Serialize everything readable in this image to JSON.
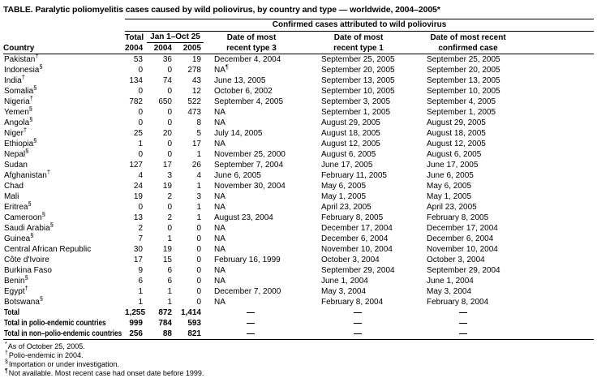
{
  "title": "TABLE. Paralytic poliomyelitis cases caused by wild poliovirus, by country and type — worldwide, 2004–2005*",
  "headers": {
    "group": "Confirmed cases attributed to wild poliovirus",
    "country": "Country",
    "total_line1": "Total",
    "total_line2": "2004",
    "jan_oct": "Jan 1–Oct 25",
    "jan_oct_2004": "2004",
    "jan_oct_2005": "2005",
    "type3_line1": "Date of most",
    "type3_line2": "recent type 3",
    "type1_line1": "Date of most",
    "type1_line2": "recent type 1",
    "recent_line1": "Date of most recent",
    "recent_line2": "confirmed case"
  },
  "rows": [
    {
      "country": "Pakistan",
      "marker": "†",
      "total_2004": "53",
      "jan_oct_2004": "36",
      "jan_oct_2005": "19",
      "type3": "December 4, 2004",
      "type1": "September 25, 2005",
      "recent": "September 25, 2005"
    },
    {
      "country": "Indonesia",
      "marker": "§",
      "total_2004": "0",
      "jan_oct_2004": "0",
      "jan_oct_2005": "278",
      "type3": "NA",
      "type3_marker": "¶",
      "type1": "September 20, 2005",
      "recent": "September 20, 2005"
    },
    {
      "country": "India",
      "marker": "†",
      "total_2004": "134",
      "jan_oct_2004": "74",
      "jan_oct_2005": "43",
      "type3": "June 13, 2005",
      "type1": "September 13, 2005",
      "recent": "September 13, 2005"
    },
    {
      "country": "Somalia",
      "marker": "§",
      "total_2004": "0",
      "jan_oct_2004": "0",
      "jan_oct_2005": "12",
      "type3": "October 6, 2002",
      "type1": "September 10, 2005",
      "recent": "September 10, 2005"
    },
    {
      "country": "Nigeria",
      "marker": "†",
      "total_2004": "782",
      "jan_oct_2004": "650",
      "jan_oct_2005": "522",
      "type3": "September 4, 2005",
      "type1": "September 3, 2005",
      "recent": "September 4, 2005"
    },
    {
      "country": "Yemen",
      "marker": "§",
      "total_2004": "0",
      "jan_oct_2004": "0",
      "jan_oct_2005": "473",
      "type3": "NA",
      "type1": "September 1, 2005",
      "recent": "September 1, 2005"
    },
    {
      "country": "Angola",
      "marker": "§",
      "total_2004": "0",
      "jan_oct_2004": "0",
      "jan_oct_2005": "8",
      "type3": "NA",
      "type1": "August 29, 2005",
      "recent": "August 29, 2005"
    },
    {
      "country": "Niger",
      "marker": "†",
      "total_2004": "25",
      "jan_oct_2004": "20",
      "jan_oct_2005": "5",
      "type3": "July 14, 2005",
      "type1": "August 18, 2005",
      "recent": "August 18, 2005"
    },
    {
      "country": "Ethiopia",
      "marker": "§",
      "total_2004": "1",
      "jan_oct_2004": "0",
      "jan_oct_2005": "17",
      "type3": "NA",
      "type1": "August 12, 2005",
      "recent": "August 12, 2005"
    },
    {
      "country": "Nepal",
      "marker": "§",
      "total_2004": "0",
      "jan_oct_2004": "0",
      "jan_oct_2005": "1",
      "type3": "November 25, 2000",
      "type1": "August 6, 2005",
      "recent": "August 6, 2005"
    },
    {
      "country": "Sudan",
      "total_2004": "127",
      "jan_oct_2004": "17",
      "jan_oct_2005": "26",
      "type3": "September 7, 2004",
      "type1": "June 17, 2005",
      "recent": "June 17, 2005"
    },
    {
      "country": "Afghanistan",
      "marker": "†",
      "total_2004": "4",
      "jan_oct_2004": "3",
      "jan_oct_2005": "4",
      "type3": "June 6, 2005",
      "type1": "February 11, 2005",
      "recent": "June 6, 2005"
    },
    {
      "country": "Chad",
      "total_2004": "24",
      "jan_oct_2004": "19",
      "jan_oct_2005": "1",
      "type3": "November 30, 2004",
      "type1": "May 6, 2005",
      "recent": "May 6, 2005"
    },
    {
      "country": "Mali",
      "total_2004": "19",
      "jan_oct_2004": "2",
      "jan_oct_2005": "3",
      "type3": "NA",
      "type1": "May 1, 2005",
      "recent": "May 1, 2005"
    },
    {
      "country": "Eritrea",
      "marker": "§",
      "total_2004": "0",
      "jan_oct_2004": "0",
      "jan_oct_2005": "1",
      "type3": "NA",
      "type1": "April 23, 2005",
      "recent": "April 23, 2005"
    },
    {
      "country": "Cameroon",
      "marker": "§",
      "total_2004": "13",
      "jan_oct_2004": "2",
      "jan_oct_2005": "1",
      "type3": "August 23, 2004",
      "type1": "February 8, 2005",
      "recent": "February 8, 2005"
    },
    {
      "country": "Saudi Arabia",
      "marker": "§",
      "total_2004": "2",
      "jan_oct_2004": "0",
      "jan_oct_2005": "0",
      "type3": "NA",
      "type1": "December 17, 2004",
      "recent": "December 17, 2004"
    },
    {
      "country": "Guinea",
      "marker": "§",
      "total_2004": "7",
      "jan_oct_2004": "1",
      "jan_oct_2005": "0",
      "type3": "NA",
      "type1": "December 6, 2004",
      "recent": "December 6, 2004"
    },
    {
      "country": "Central African Republic",
      "total_2004": "30",
      "jan_oct_2004": "19",
      "jan_oct_2005": "0",
      "type3": "NA",
      "type1": "November 10, 2004",
      "recent": "November 10, 2004"
    },
    {
      "country": "Côte d'Ivoire",
      "total_2004": "17",
      "jan_oct_2004": "15",
      "jan_oct_2005": "0",
      "type3": "February 16, 1999",
      "type1": "October 3, 2004",
      "recent": "October 3, 2004"
    },
    {
      "country": "Burkina Faso",
      "total_2004": "9",
      "jan_oct_2004": "6",
      "jan_oct_2005": "0",
      "type3": "NA",
      "type1": "September 29, 2004",
      "recent": "September 29, 2004"
    },
    {
      "country": "Benin",
      "marker": "§",
      "total_2004": "6",
      "jan_oct_2004": "6",
      "jan_oct_2005": "0",
      "type3": "NA",
      "type1": "June 1, 2004",
      "recent": "June 1, 2004"
    },
    {
      "country": "Egypt",
      "marker": "†",
      "total_2004": "1",
      "jan_oct_2004": "1",
      "jan_oct_2005": "0",
      "type3": "December 7, 2000",
      "type1": "May 3, 2004",
      "recent": "May 3, 2004"
    },
    {
      "country": "Botswana",
      "marker": "§",
      "total_2004": "1",
      "jan_oct_2004": "1",
      "jan_oct_2005": "0",
      "type3": "NA",
      "type1": "February 8, 2004",
      "recent": "February 8, 2004"
    }
  ],
  "total_rows": [
    {
      "country": "Total",
      "total_2004": "1,255",
      "jan_oct_2004": "872",
      "jan_oct_2005": "1,414",
      "type3": "—",
      "type1": "—",
      "recent": "—"
    },
    {
      "country": "Total in polio-endemic countries",
      "total_2004": "999",
      "jan_oct_2004": "784",
      "jan_oct_2005": "593",
      "type3": "—",
      "type1": "—",
      "recent": "—"
    },
    {
      "country": "Total in non–polio-endemic countries",
      "total_2004": "256",
      "jan_oct_2004": "88",
      "jan_oct_2005": "821",
      "type3": "—",
      "type1": "—",
      "recent": "—"
    }
  ],
  "footnotes": [
    {
      "marker": "*",
      "text": "As of October 25, 2005."
    },
    {
      "marker": "†",
      "text": "Polio-endemic in 2004."
    },
    {
      "marker": "§",
      "text": "Importation or under investigation."
    },
    {
      "marker": "¶",
      "text": "Not available. Most recent case had onset date before 1999."
    }
  ]
}
